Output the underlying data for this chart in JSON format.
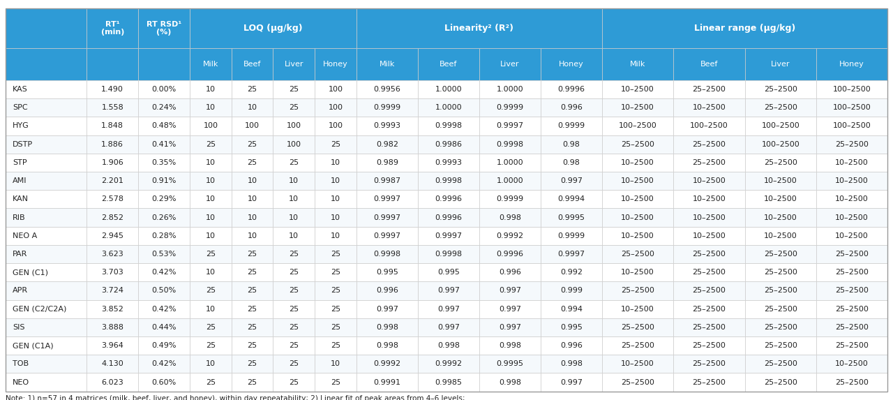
{
  "rows": [
    [
      "KAS",
      "1.490",
      "0.00%",
      "10",
      "25",
      "25",
      "100",
      "0.9956",
      "1.0000",
      "1.0000",
      "0.9996",
      "10–2500",
      "25–2500",
      "25–2500",
      "100–2500"
    ],
    [
      "SPC",
      "1.558",
      "0.24%",
      "10",
      "10",
      "25",
      "100",
      "0.9999",
      "1.0000",
      "0.9999",
      "0.996",
      "10–2500",
      "10–2500",
      "25–2500",
      "100–2500"
    ],
    [
      "HYG",
      "1.848",
      "0.48%",
      "100",
      "100",
      "100",
      "100",
      "0.9993",
      "0.9998",
      "0.9997",
      "0.9999",
      "100–2500",
      "100–2500",
      "100–2500",
      "100–2500"
    ],
    [
      "DSTP",
      "1.886",
      "0.41%",
      "25",
      "25",
      "100",
      "25",
      "0.982",
      "0.9986",
      "0.9998",
      "0.98",
      "25–2500",
      "25–2500",
      "100–2500",
      "25–2500"
    ],
    [
      "STP",
      "1.906",
      "0.35%",
      "10",
      "25",
      "25",
      "10",
      "0.989",
      "0.9993",
      "1.0000",
      "0.98",
      "10–2500",
      "25–2500",
      "25–2500",
      "10–2500"
    ],
    [
      "AMI",
      "2.201",
      "0.91%",
      "10",
      "10",
      "10",
      "10",
      "0.9987",
      "0.9998",
      "1.0000",
      "0.997",
      "10–2500",
      "10–2500",
      "10–2500",
      "10–2500"
    ],
    [
      "KAN",
      "2.578",
      "0.29%",
      "10",
      "10",
      "10",
      "10",
      "0.9997",
      "0.9996",
      "0.9999",
      "0.9994",
      "10–2500",
      "10–2500",
      "10–2500",
      "10–2500"
    ],
    [
      "RIB",
      "2.852",
      "0.26%",
      "10",
      "10",
      "10",
      "10",
      "0.9997",
      "0.9996",
      "0.998",
      "0.9995",
      "10–2500",
      "10–2500",
      "10–2500",
      "10–2500"
    ],
    [
      "NEO A",
      "2.945",
      "0.28%",
      "10",
      "10",
      "10",
      "10",
      "0.9997",
      "0.9997",
      "0.9992",
      "0.9999",
      "10–2500",
      "10–2500",
      "10–2500",
      "10–2500"
    ],
    [
      "PAR",
      "3.623",
      "0.53%",
      "25",
      "25",
      "25",
      "25",
      "0.9998",
      "0.9998",
      "0.9996",
      "0.9997",
      "25–2500",
      "25–2500",
      "25–2500",
      "25–2500"
    ],
    [
      "GEN (C1)",
      "3.703",
      "0.42%",
      "10",
      "25",
      "25",
      "25",
      "0.995",
      "0.995",
      "0.996",
      "0.992",
      "10–2500",
      "25–2500",
      "25–2500",
      "25–2500"
    ],
    [
      "APR",
      "3.724",
      "0.50%",
      "25",
      "25",
      "25",
      "25",
      "0.996",
      "0.997",
      "0.997",
      "0.999",
      "25–2500",
      "25–2500",
      "25–2500",
      "25–2500"
    ],
    [
      "GEN (C2/C2A)",
      "3.852",
      "0.42%",
      "10",
      "25",
      "25",
      "25",
      "0.997",
      "0.997",
      "0.997",
      "0.994",
      "10–2500",
      "25–2500",
      "25–2500",
      "25–2500"
    ],
    [
      "SIS",
      "3.888",
      "0.44%",
      "25",
      "25",
      "25",
      "25",
      "0.998",
      "0.997",
      "0.997",
      "0.995",
      "25–2500",
      "25–2500",
      "25–2500",
      "25–2500"
    ],
    [
      "GEN (C1A)",
      "3.964",
      "0.49%",
      "25",
      "25",
      "25",
      "25",
      "0.998",
      "0.998",
      "0.998",
      "0.996",
      "25–2500",
      "25–2500",
      "25–2500",
      "25–2500"
    ],
    [
      "TOB",
      "4.130",
      "0.42%",
      "10",
      "25",
      "25",
      "10",
      "0.9992",
      "0.9992",
      "0.9995",
      "0.998",
      "10–2500",
      "25–2500",
      "25–2500",
      "10–2500"
    ],
    [
      "NEO",
      "6.023",
      "0.60%",
      "25",
      "25",
      "25",
      "25",
      "0.9991",
      "0.9985",
      "0.998",
      "0.997",
      "25–2500",
      "25–2500",
      "25–2500",
      "25–2500"
    ]
  ],
  "header_bg": "#2E9BD6",
  "header_text": "#FFFFFF",
  "subheader_bg": "#2E9BD6",
  "subheader_text": "#FFFFFF",
  "row_bg_odd": "#FFFFFF",
  "row_bg_even": "#F5F5F5",
  "border_color": "#CCCCCC",
  "text_color": "#222222",
  "note_text": "Note: 1) n=57 in 4 matrices (milk, beef, liver, and honey), within day repeatability; 2) Linear fit of peak areas from 4–6 levels;",
  "col_groups": [
    {
      "label": "",
      "span": 1
    },
    {
      "label": "RT¹\n(min)",
      "span": 1
    },
    {
      "label": "RT RSD¹\n(%)",
      "span": 1
    },
    {
      "label": "LOQ (µg/kg)",
      "span": 4
    },
    {
      "label": "Linearity² (R²)",
      "span": 4
    },
    {
      "label": "Linear range (µg/kg)",
      "span": 4
    }
  ],
  "sub_cols": [
    "",
    "RT¹\n(min)",
    "RT RSD¹\n(%)",
    "Milk",
    "Beef",
    "Liver",
    "Honey",
    "Milk",
    "Beef",
    "Liver",
    "Honey",
    "Milk",
    "Beef",
    "Liver",
    "Honey"
  ]
}
